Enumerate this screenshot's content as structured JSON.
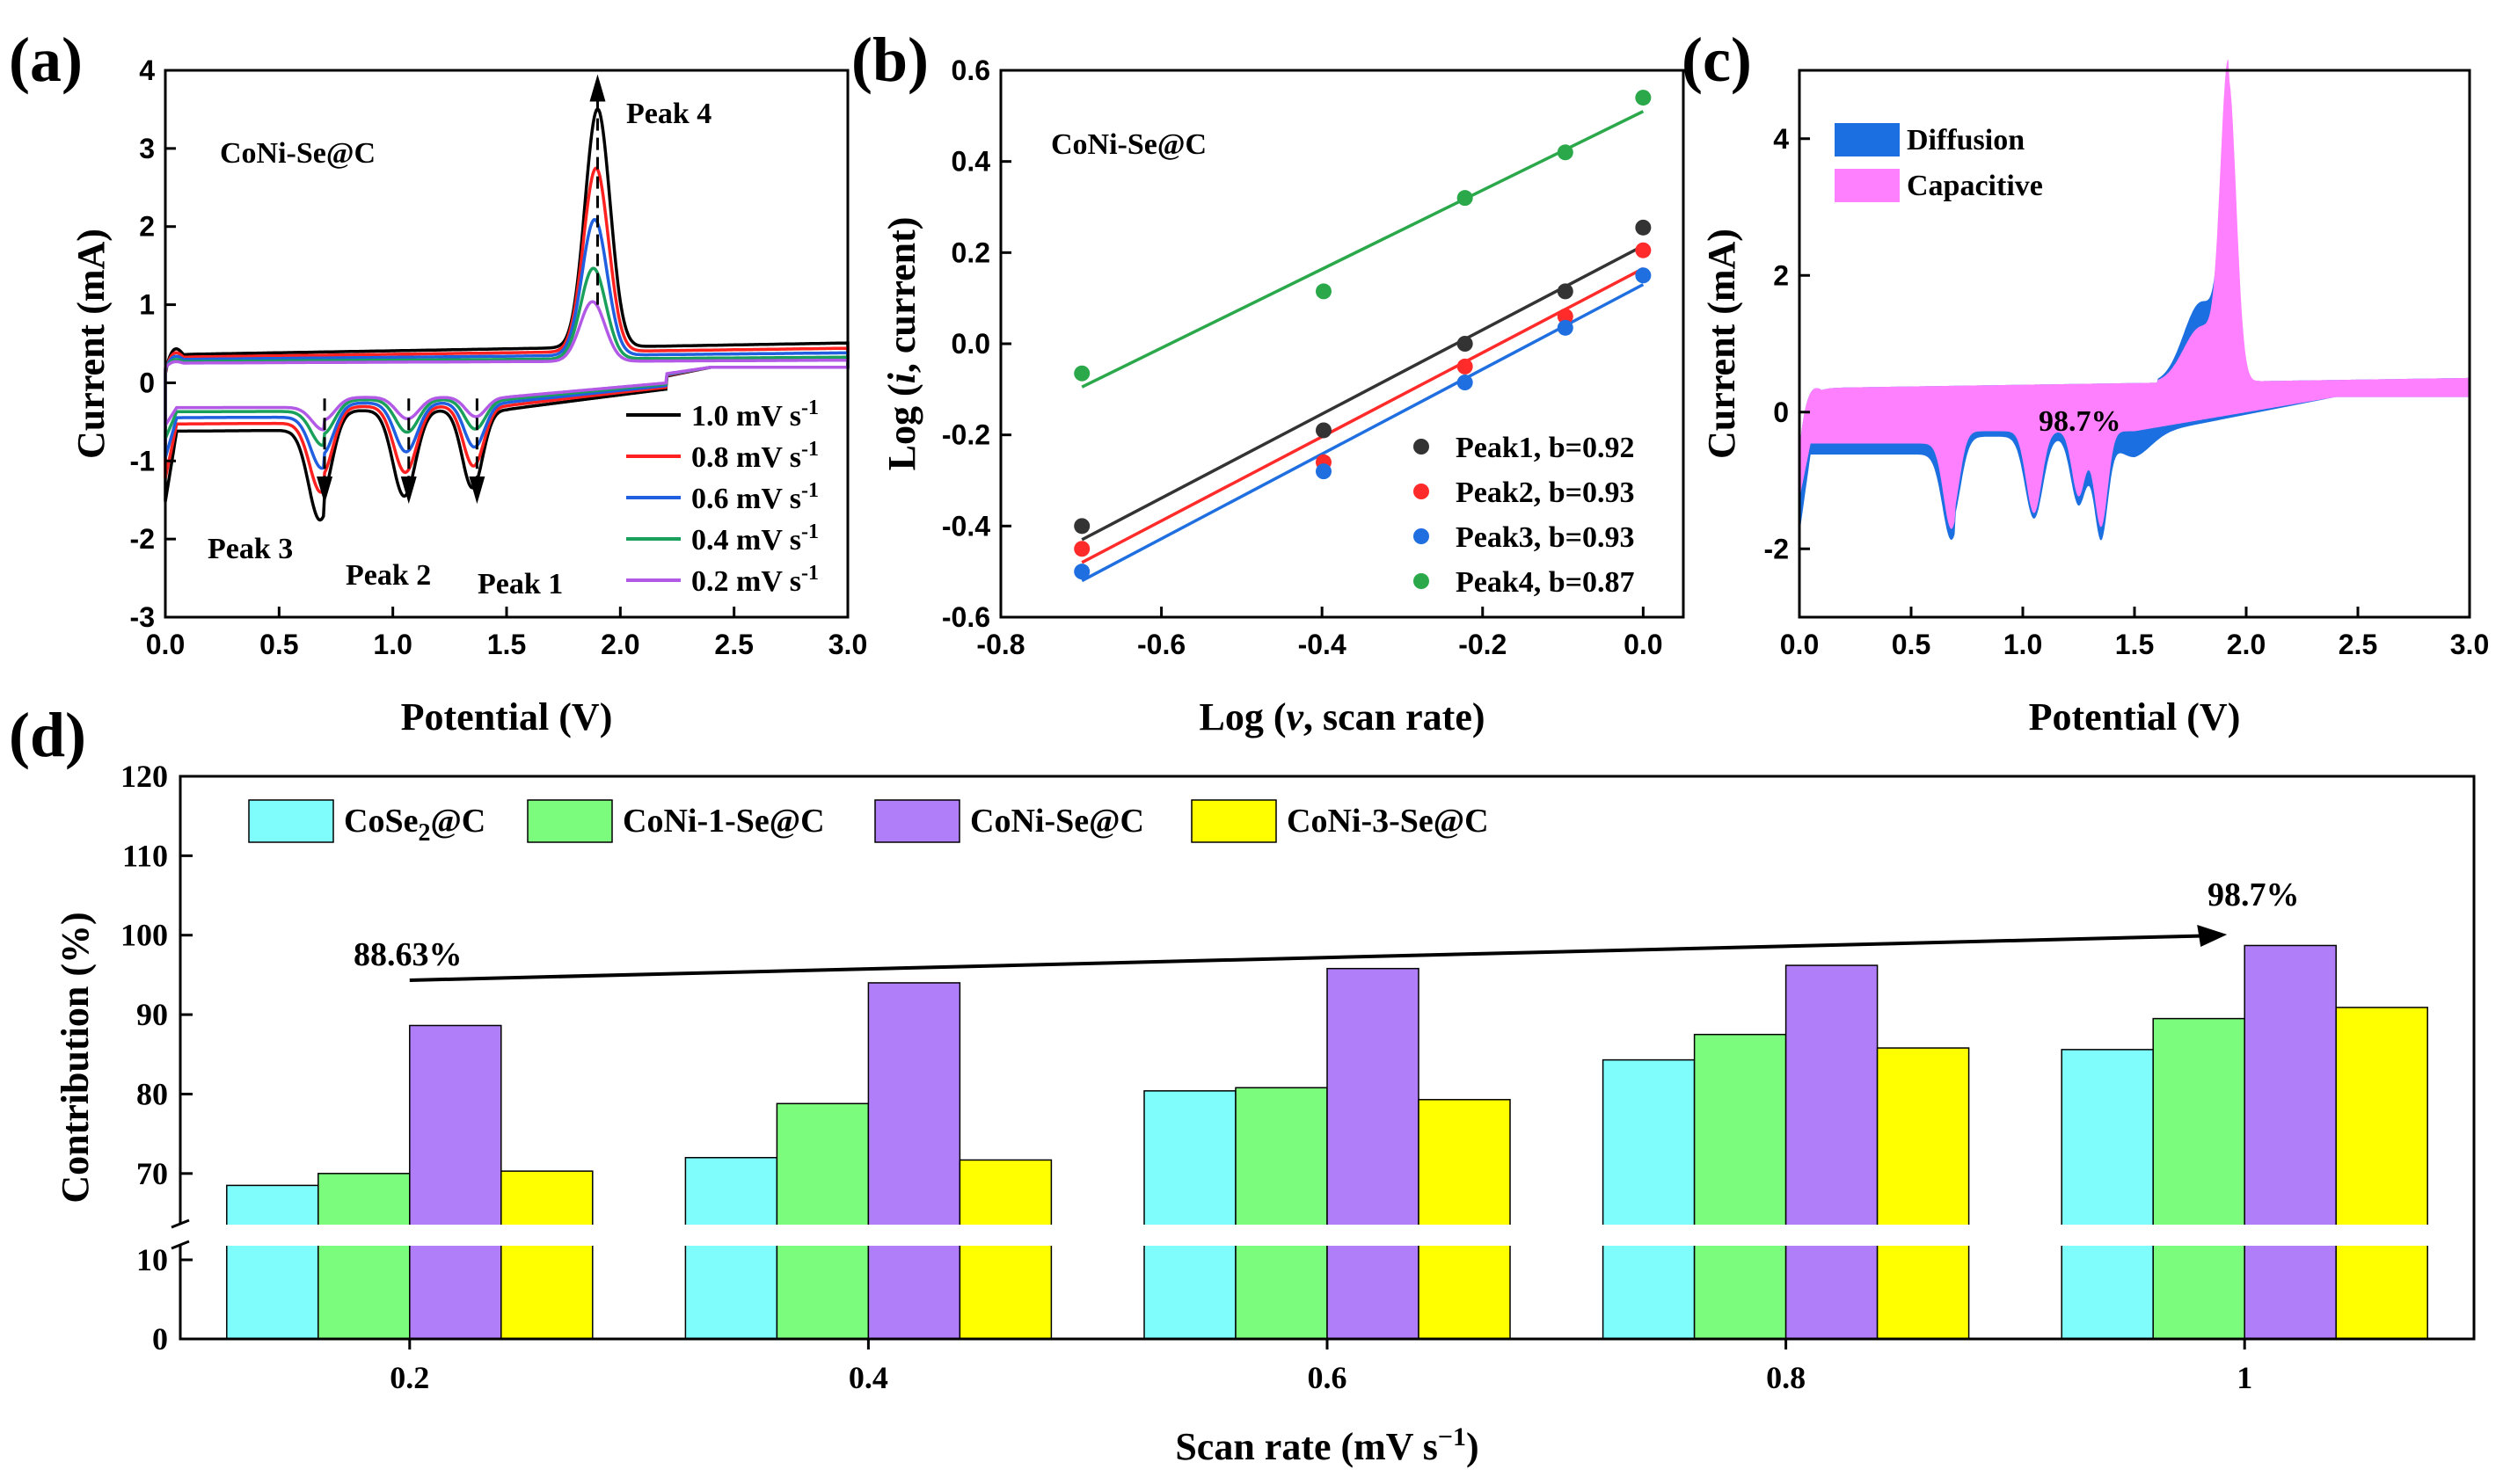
{
  "chart_data": [
    {
      "id": "a",
      "type": "line",
      "panel_label": "(a)",
      "title": "",
      "xlabel": "Potential (V)",
      "ylabel": "Current (mA)",
      "xlim": [
        0.0,
        3.0
      ],
      "ylim": [
        -3,
        4
      ],
      "xticks": [
        "0.0",
        "0.5",
        "1.0",
        "1.5",
        "2.0",
        "2.5",
        "3.0"
      ],
      "yticks": [
        "4",
        "3",
        "2",
        "1",
        "0",
        "-1",
        "-2",
        "-3"
      ],
      "sample_label": "CoNi-Se@C",
      "peak_labels": {
        "p1": "Peak 1",
        "p2": "Peak 2",
        "p3": "Peak 3",
        "p4": "Peak 4"
      },
      "series": [
        {
          "name": "1.0 mV s",
          "sup": "-1",
          "color": "#000000",
          "scale": 1.0
        },
        {
          "name": "0.8 mV s",
          "sup": "-1",
          "color": "#ff2020",
          "scale": 0.77
        },
        {
          "name": "0.6 mV s",
          "sup": "-1",
          "color": "#1f5fe0",
          "scale": 0.57
        },
        {
          "name": "0.4 mV s",
          "sup": "-1",
          "color": "#19a05a",
          "scale": 0.38
        },
        {
          "name": "0.2 mV s",
          "sup": "-1",
          "color": "#b25ae6",
          "scale": 0.25
        }
      ],
      "curve_model": {
        "peak4": {
          "center": 1.9,
          "height": 3.05,
          "width": 0.055
        },
        "upper_baseline": 0.36,
        "lower_baseline": -0.62,
        "cathodic_peaks": [
          {
            "center": 0.68,
            "depth": 1.15,
            "width": 0.05
          },
          {
            "center": 1.05,
            "depth": 1.1,
            "width": 0.05
          },
          {
            "center": 1.35,
            "depth": 1.0,
            "width": 0.045
          }
        ]
      },
      "legend_position": "bottom-right"
    },
    {
      "id": "b",
      "type": "scatter",
      "panel_label": "(b)",
      "title": "",
      "xlabel_parts": [
        "Log (",
        "v",
        ", scan rate)"
      ],
      "ylabel_parts": [
        "Log (",
        "i",
        ", current)"
      ],
      "xlim": [
        -0.8,
        0.05
      ],
      "ylim": [
        -0.6,
        0.6
      ],
      "xticks": [
        "-0.8",
        "-0.6",
        "-0.4",
        "-0.2",
        "0.0"
      ],
      "yticks": [
        "0.6",
        "0.4",
        "0.2",
        "0.0",
        "-0.2",
        "-0.4",
        "-0.6"
      ],
      "sample_label": "CoNi-Se@C",
      "x": [
        -0.699,
        -0.398,
        -0.222,
        -0.097,
        0.0
      ],
      "series": [
        {
          "name": "Peak1, b=0.92",
          "color": "#333333",
          "values": [
            -0.4,
            -0.19,
            0.0,
            0.115,
            0.255
          ],
          "fit": [
            -0.43,
            0.215
          ]
        },
        {
          "name": "Peak2, b=0.93",
          "color": "#ff2a2a",
          "values": [
            -0.45,
            -0.26,
            -0.05,
            0.06,
            0.205
          ],
          "fit": [
            -0.48,
            0.165
          ]
        },
        {
          "name": "Peak3, b=0.93",
          "color": "#1f6fe0",
          "values": [
            -0.5,
            -0.28,
            -0.085,
            0.035,
            0.15
          ],
          "fit": [
            -0.52,
            0.13
          ]
        },
        {
          "name": "Peak4, b=0.87",
          "color": "#2aa84a",
          "values": [
            -0.065,
            0.115,
            0.32,
            0.42,
            0.54
          ],
          "fit": [
            -0.095,
            0.51
          ]
        }
      ],
      "legend_position": "bottom-right"
    },
    {
      "id": "c",
      "type": "area",
      "panel_label": "(c)",
      "title": "",
      "xlabel": "Potential (V)",
      "ylabel": "Current (mA)",
      "xlim": [
        0.0,
        3.0
      ],
      "ylim": [
        -3,
        5
      ],
      "xticks": [
        "0.0",
        "0.5",
        "1.0",
        "1.5",
        "2.0",
        "2.5",
        "3.0"
      ],
      "yticks": [
        "4",
        "2",
        "0",
        "-2"
      ],
      "series": [
        {
          "name": "Diffusion",
          "color": "#1b6fe0"
        },
        {
          "name": "Capacitive",
          "color": "#ff80ff"
        }
      ],
      "annotation": "98.7%",
      "legend_position": "top-left"
    },
    {
      "id": "d",
      "type": "bar",
      "panel_label": "(d)",
      "title": "",
      "xlabel": "Scan rate (mV s",
      "xlabel_sup": "−1",
      "xlabel_end": ")",
      "ylabel": "Contribution (%)",
      "categories": [
        "0.2",
        "0.4",
        "0.6",
        "0.8",
        "1"
      ],
      "yticks_upper": [
        "120",
        "110",
        "100",
        "90",
        "80",
        "70"
      ],
      "yticks_lower": [
        "10",
        "0"
      ],
      "axis_break": [
        10,
        65
      ],
      "series": [
        {
          "name_main": "CoSe",
          "name_sub": "2",
          "name_end": "@C",
          "color": "#7ffcfc",
          "values": [
            68.5,
            72.0,
            80.4,
            84.3,
            85.6
          ]
        },
        {
          "name_main": "CoNi-1-Se@C",
          "name_sub": "",
          "name_end": "",
          "color": "#7cfc7c",
          "values": [
            70.0,
            78.8,
            80.8,
            87.5,
            89.5
          ]
        },
        {
          "name_main": "CoNi-Se@C",
          "name_sub": "",
          "name_end": "",
          "color": "#b07ef8",
          "values": [
            88.63,
            94.0,
            95.8,
            96.2,
            98.7
          ]
        },
        {
          "name_main": "CoNi-3-Se@C",
          "name_sub": "",
          "name_end": "",
          "color": "#ffff00",
          "values": [
            70.3,
            71.7,
            79.3,
            85.8,
            90.9
          ]
        }
      ],
      "annotations": {
        "start": "88.63%",
        "end": "98.7%"
      },
      "legend_position": "top-left"
    }
  ]
}
